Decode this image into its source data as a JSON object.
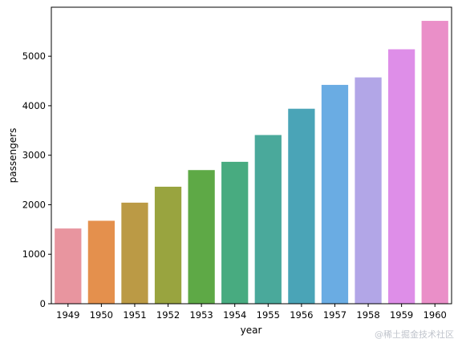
{
  "chart_data": {
    "type": "bar",
    "categories": [
      "1949",
      "1950",
      "1951",
      "1952",
      "1953",
      "1954",
      "1955",
      "1956",
      "1957",
      "1958",
      "1959",
      "1960"
    ],
    "values": [
      1520,
      1676,
      2042,
      2364,
      2700,
      2867,
      3408,
      3939,
      4421,
      4572,
      5140,
      5714
    ],
    "xlabel": "year",
    "ylabel": "passengers",
    "ylim": [
      0,
      6000
    ],
    "yticks": [
      0,
      1000,
      2000,
      3000,
      4000,
      5000
    ],
    "grid": false,
    "colors": [
      "#e8959f",
      "#e4904d",
      "#bb9a45",
      "#99a43f",
      "#5ea946",
      "#48ab80",
      "#4aa99b",
      "#4aa4b7",
      "#6aace3",
      "#b2a6e7",
      "#de8ee8",
      "#ea8fc8"
    ]
  },
  "watermark": "@稀土掘金技术社区"
}
